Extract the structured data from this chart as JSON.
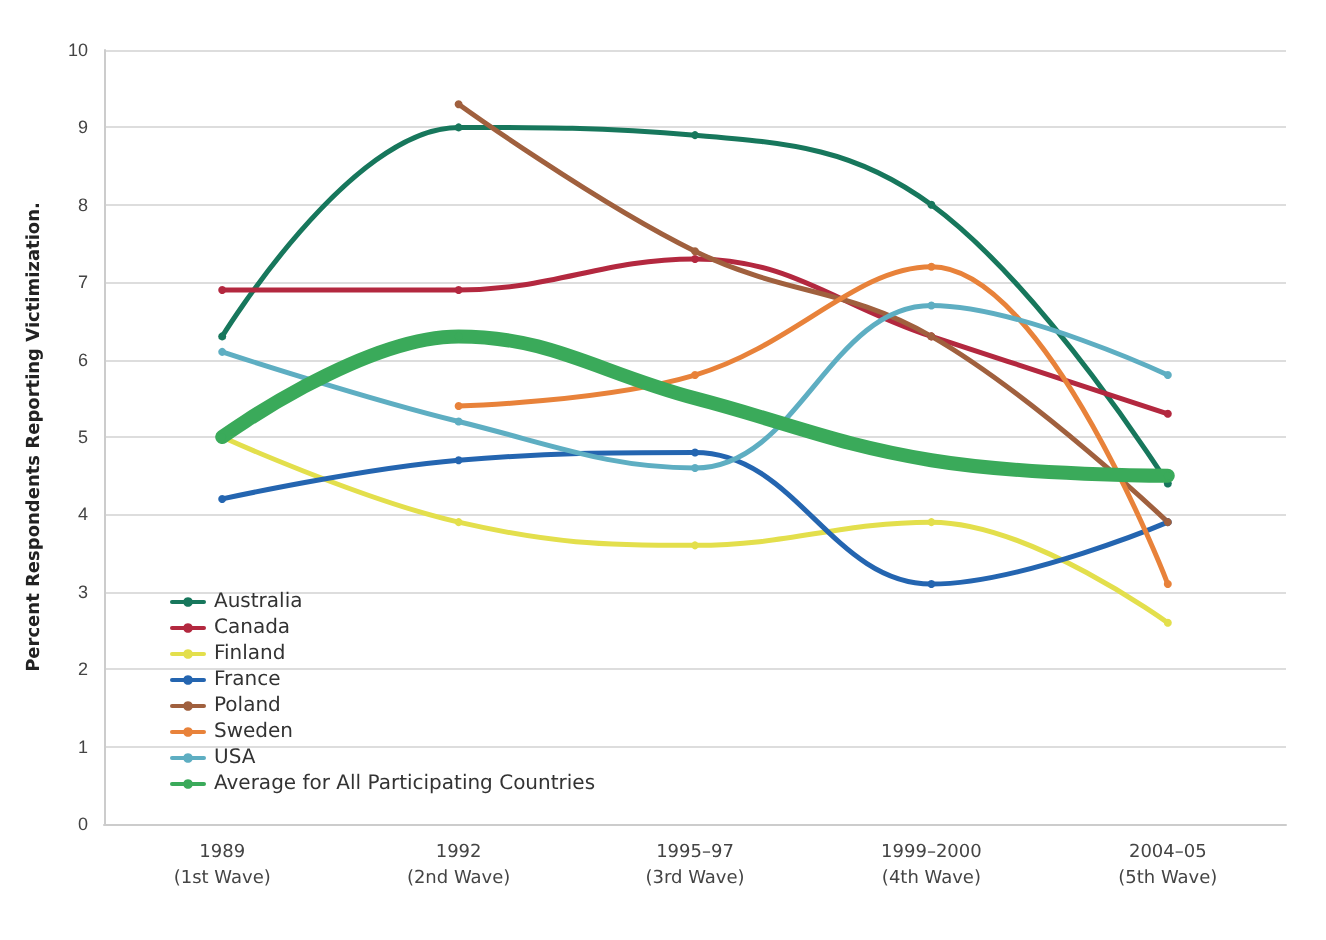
{
  "chart_data": {
    "type": "line",
    "ylabel": "Percent Respondents Reporting Victimization.",
    "categories": [
      "1989\n(1st Wave)",
      "1992\n(2nd Wave)",
      "1995–97\n(3rd Wave)",
      "1999–2000\n(4th Wave)",
      "2004–05\n(5th Wave)"
    ],
    "series": [
      {
        "name": "Australia",
        "color": "#17775c",
        "values": [
          6.3,
          9.0,
          8.9,
          8.0,
          4.4
        ]
      },
      {
        "name": "Canada",
        "color": "#b3283f",
        "values": [
          6.9,
          6.9,
          7.3,
          6.3,
          5.3
        ]
      },
      {
        "name": "Finland",
        "color": "#e3df4c",
        "values": [
          5.0,
          3.9,
          3.6,
          3.9,
          2.6
        ]
      },
      {
        "name": "France",
        "color": "#2465b0",
        "values": [
          4.2,
          4.7,
          4.8,
          3.1,
          3.9
        ]
      },
      {
        "name": "Poland",
        "color": "#a0603e",
        "values": [
          null,
          9.3,
          7.4,
          6.3,
          3.9
        ]
      },
      {
        "name": "Sweden",
        "color": "#e8823a",
        "values": [
          null,
          5.4,
          5.8,
          7.2,
          3.1
        ]
      },
      {
        "name": "USA",
        "color": "#5eaec2",
        "values": [
          6.1,
          5.2,
          4.6,
          6.7,
          5.8
        ]
      },
      {
        "name": "Average for All Participating Countries",
        "color": "#3aaa5a",
        "values": [
          5.0,
          6.3,
          5.5,
          4.7,
          4.5
        ]
      }
    ],
    "ylim": [
      0,
      10
    ],
    "yticks": [
      0,
      1,
      2,
      3,
      4,
      5,
      6,
      7,
      8,
      9,
      10
    ],
    "grid": "y",
    "legend": "bottom left",
    "marker": "circle",
    "line_style": "solid"
  }
}
